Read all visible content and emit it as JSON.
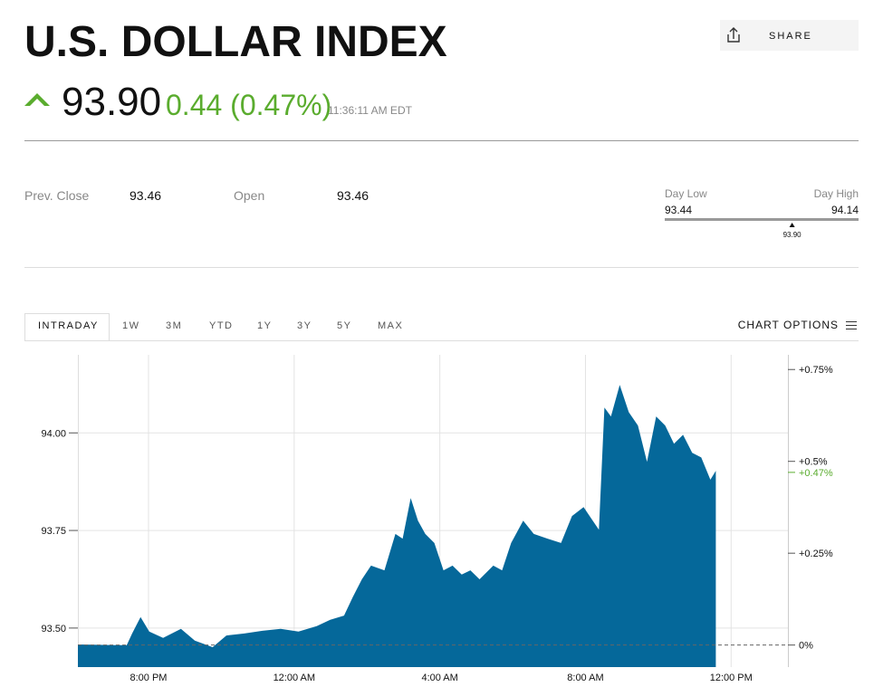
{
  "header": {
    "title": "U.S. DOLLAR INDEX",
    "share": "SHARE",
    "price": "93.90",
    "change": "0.44 (0.47%)",
    "time": "11:36:11 AM EDT"
  },
  "stats": [
    {
      "label": "Prev. Close",
      "value": "93.46"
    },
    {
      "label": "Open",
      "value": "93.46"
    }
  ],
  "day_range": {
    "low_label": "Day Low",
    "high_label": "Day High",
    "low": 93.44,
    "high": 94.14,
    "current": {
      "value": 93.9,
      "label": "93.90"
    }
  },
  "tabs": [
    "INTRADAY",
    "1W",
    "3M",
    "YTD",
    "1Y",
    "3Y",
    "5Y",
    "MAX"
  ],
  "chart_options": "CHART OPTIONS",
  "chart_data": {
    "type": "area",
    "color": "#05689a",
    "grid": true,
    "x": [
      -5.94,
      -4.6,
      -4.45,
      -4.22,
      -3.98,
      -3.6,
      -3.11,
      -2.73,
      -2.24,
      -1.86,
      -1.37,
      -0.87,
      -0.37,
      0.12,
      0.62,
      0.99,
      1.37,
      1.61,
      1.86,
      2.11,
      2.48,
      2.78,
      2.98,
      3.2,
      3.4,
      3.6,
      3.85,
      4.1,
      4.35,
      4.6,
      4.84,
      5.09,
      5.47,
      5.71,
      5.96,
      6.29,
      6.58,
      6.96,
      7.33,
      7.63,
      7.95,
      8.2,
      8.37,
      8.52,
      8.7,
      8.94,
      9.19,
      9.44,
      9.69,
      9.94,
      10.19,
      10.43,
      10.68,
      10.93,
      11.18,
      11.43,
      11.58
    ],
    "values": [
      93.458,
      93.456,
      93.486,
      93.528,
      93.491,
      93.475,
      93.498,
      93.468,
      93.451,
      93.481,
      93.486,
      93.493,
      93.498,
      93.491,
      93.505,
      93.521,
      93.532,
      93.579,
      93.625,
      93.66,
      93.648,
      93.741,
      93.729,
      93.833,
      93.775,
      93.741,
      93.718,
      93.648,
      93.66,
      93.637,
      93.648,
      93.625,
      93.66,
      93.648,
      93.718,
      93.775,
      93.741,
      93.729,
      93.718,
      93.787,
      93.81,
      93.775,
      93.752,
      94.065,
      94.042,
      94.123,
      94.053,
      94.019,
      93.926,
      94.042,
      94.019,
      93.972,
      93.995,
      93.949,
      93.937,
      93.88,
      93.903
    ],
    "xlim": [
      -5.94,
      13.56
    ],
    "xticks": [
      {
        "value": -4,
        "label": "8:00 PM"
      },
      {
        "value": 0,
        "label": "12:00 AM"
      },
      {
        "value": 4,
        "label": "4:00 AM"
      },
      {
        "value": 8,
        "label": "8:00 AM"
      },
      {
        "value": 12,
        "label": "12:00 PM"
      }
    ],
    "ylim": [
      93.4,
      94.2
    ],
    "yticks": [
      {
        "value": 94,
        "label": "94.00"
      },
      {
        "value": 93.75,
        "label": "93.75"
      },
      {
        "value": 93.5,
        "label": "93.50"
      }
    ],
    "y2lim": [
      -0.06,
      0.79
    ],
    "y2ticks": [
      {
        "value": 0.75,
        "label": "+0.75%"
      },
      {
        "value": 0.5,
        "label": "+0.5%"
      },
      {
        "value": 0.25,
        "label": "+0.25%"
      },
      {
        "value": 0,
        "label": "0%"
      }
    ],
    "y2_marker": {
      "value": 0.47,
      "label": "+0.47%",
      "color": "#5aac2e"
    }
  }
}
